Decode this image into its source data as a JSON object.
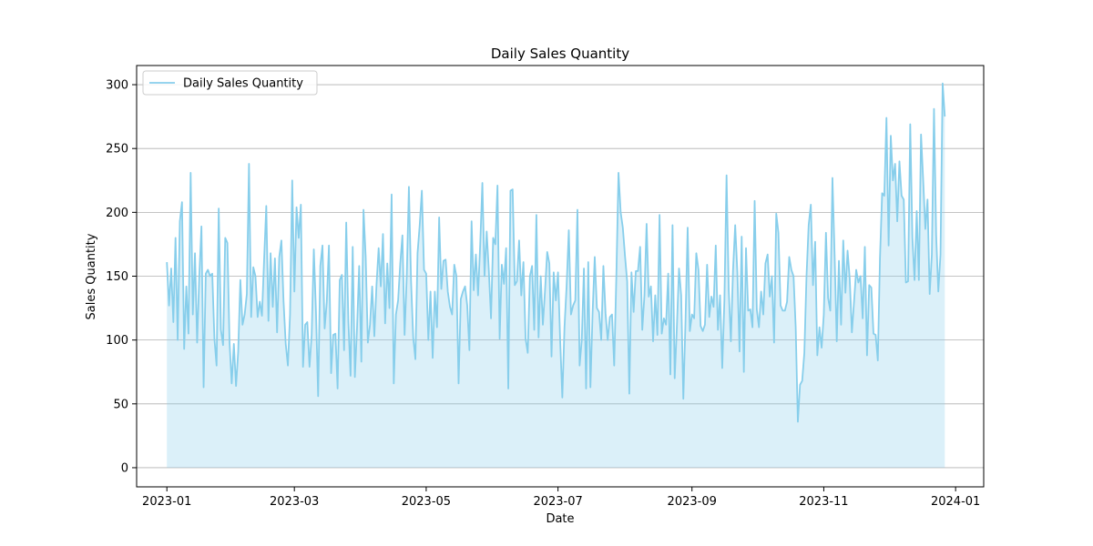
{
  "chart_data": {
    "type": "line",
    "title": "Daily Sales Quantity",
    "xlabel": "Date",
    "ylabel": "Sales Quantity",
    "x_start": "2023-01-01",
    "x_end": "2023-12-31",
    "xlim": [
      "2022-12-18",
      "2024-01-14"
    ],
    "ylim": [
      -15,
      315
    ],
    "x_ticks": [
      "2023-01",
      "2023-03",
      "2023-05",
      "2023-07",
      "2023-09",
      "2023-11",
      "2024-01"
    ],
    "y_ticks": [
      0,
      50,
      100,
      150,
      200,
      250,
      300
    ],
    "grid": "y",
    "fill_to_zero": true,
    "legend_position": "upper-left",
    "colors": {
      "line": "#87ceeb",
      "fill": "#87ceeb",
      "grid": "#b0b0b0"
    },
    "series": [
      {
        "name": "Daily Sales Quantity",
        "values": [
          161,
          127,
          156,
          114,
          180,
          100,
          193,
          208,
          93,
          142,
          105,
          231,
          120,
          168,
          98,
          150,
          189,
          63,
          152,
          155,
          150,
          152,
          101,
          80,
          203,
          108,
          96,
          180,
          176,
          98,
          66,
          97,
          64,
          91,
          147,
          112,
          120,
          136,
          238,
          118,
          157,
          150,
          118,
          130,
          119,
          163,
          205,
          115,
          168,
          126,
          164,
          106,
          165,
          178,
          130,
          97,
          80,
          120,
          225,
          138,
          204,
          180,
          206,
          79,
          112,
          114,
          79,
          104,
          171,
          122,
          56,
          158,
          174,
          109,
          130,
          174,
          74,
          104,
          105,
          62,
          147,
          151,
          92,
          192,
          114,
          72,
          173,
          71,
          110,
          158,
          83,
          202,
          165,
          98,
          112,
          142,
          103,
          143,
          172,
          142,
          183,
          113,
          160,
          125,
          214,
          66,
          120,
          131,
          160,
          182,
          104,
          150,
          220,
          146,
          102,
          85,
          168,
          190,
          217,
          155,
          152,
          100,
          138,
          86,
          138,
          110,
          196,
          140,
          162,
          163,
          138,
          126,
          120,
          159,
          150,
          66,
          132,
          138,
          142,
          127,
          92,
          193,
          139,
          167,
          135,
          175,
          223,
          150,
          185,
          154,
          117,
          180,
          175,
          221,
          101,
          159,
          144,
          172,
          62,
          217,
          218,
          143,
          146,
          178,
          135,
          161,
          101,
          90,
          150,
          158,
          108,
          198,
          102,
          150,
          112,
          139,
          169,
          160,
          87,
          153,
          131,
          153,
          100,
          55,
          110,
          143,
          186,
          120,
          127,
          131,
          202,
          80,
          100,
          156,
          62,
          161,
          63,
          121,
          165,
          125,
          122,
          100,
          158,
          121,
          100,
          118,
          120,
          80,
          150,
          231,
          200,
          188,
          166,
          146,
          58,
          153,
          122,
          154,
          154,
          173,
          108,
          135,
          191,
          134,
          142,
          99,
          135,
          104,
          198,
          105,
          117,
          112,
          152,
          73,
          190,
          70,
          110,
          156,
          135,
          54,
          115,
          188,
          107,
          120,
          117,
          168,
          155,
          111,
          107,
          112,
          159,
          118,
          134,
          126,
          174,
          108,
          135,
          78,
          131,
          229,
          140,
          99,
          155,
          190,
          153,
          91,
          181,
          75,
          172,
          123,
          124,
          110,
          209,
          124,
          110,
          138,
          120,
          160,
          167,
          134,
          150,
          98,
          199,
          184,
          127,
          123,
          123,
          130,
          165,
          155,
          150,
          110,
          36,
          65,
          68,
          90,
          150,
          190,
          206,
          143,
          177,
          88,
          110,
          94,
          120,
          184,
          133,
          123,
          227,
          167,
          99,
          162,
          112,
          178,
          137,
          170,
          148,
          106,
          130,
          155,
          145,
          150,
          117,
          173,
          88,
          143,
          141,
          105,
          104,
          84,
          164,
          215,
          213,
          274,
          174,
          260,
          225,
          238,
          193,
          240,
          213,
          210,
          145,
          146,
          269,
          180,
          147,
          201,
          147,
          261,
          225,
          187,
          210,
          136,
          167,
          281,
          182,
          138,
          167,
          301,
          275
        ]
      }
    ]
  }
}
